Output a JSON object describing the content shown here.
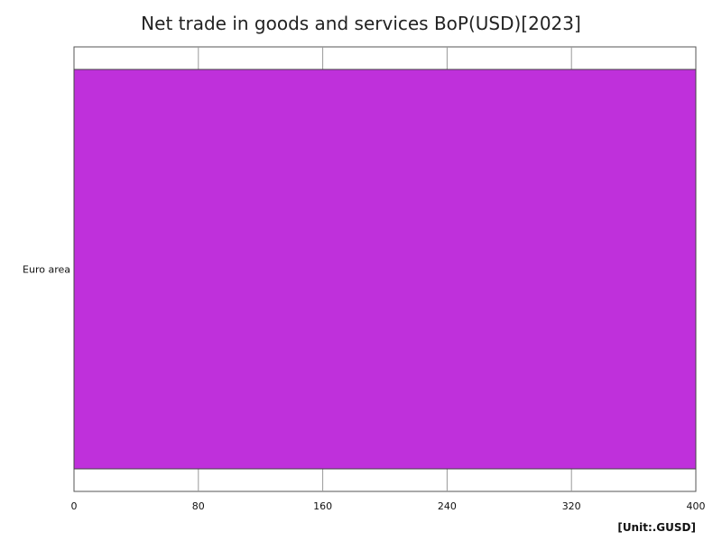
{
  "chart_data": {
    "type": "bar",
    "orientation": "horizontal",
    "title": "Net trade in goods and services BoP(USD)[2023]",
    "categories": [
      "Euro area"
    ],
    "values": [
      400
    ],
    "xlim": [
      0,
      400
    ],
    "x_ticks": [
      "0",
      "80",
      "160",
      "240",
      "320",
      "400"
    ],
    "unit": "[Unit:.GUSD]",
    "bar_color": "#bf30db",
    "grid": true
  }
}
